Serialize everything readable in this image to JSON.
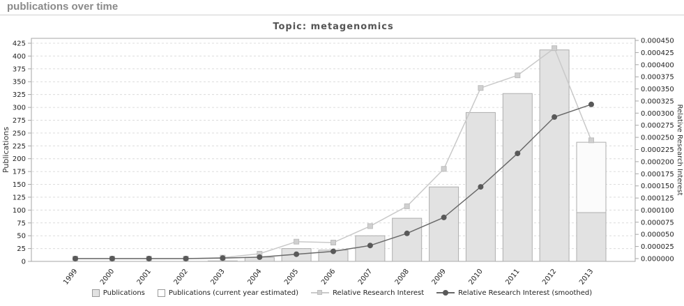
{
  "page": {
    "title": "publications over time"
  },
  "chart": {
    "title": "Topic: metagenomics",
    "left_axis": {
      "label": "Publications",
      "min": 0,
      "max": 425,
      "step": 25
    },
    "right_axis": {
      "label": "Relative Research Interest",
      "min": 0,
      "max": 0.00045,
      "step": 2.5e-05,
      "decimals": 6
    },
    "legend": [
      {
        "label": "Publications",
        "swatch": "bar"
      },
      {
        "label": "Publications (current year estimated)",
        "swatch": "bar-estimated"
      },
      {
        "label": "Relative Research Interest",
        "swatch": "line-square"
      },
      {
        "label": "Relative Research Interest (smoothed)",
        "swatch": "line-dot"
      }
    ]
  },
  "chart_data": {
    "type": "bar",
    "categories": [
      "1999",
      "2000",
      "2001",
      "2002",
      "2003",
      "2004",
      "2005",
      "2006",
      "2007",
      "2008",
      "2009",
      "2010",
      "2011",
      "2012",
      "2013"
    ],
    "series": [
      {
        "name": "Publications",
        "type": "bar",
        "axis": "left",
        "values": [
          0,
          0,
          0,
          0,
          1,
          8,
          25,
          22,
          50,
          84,
          145,
          290,
          327,
          412,
          95
        ]
      },
      {
        "name": "Publications (current year estimated)",
        "type": "bar-estimated",
        "axis": "left",
        "values": [
          null,
          null,
          null,
          null,
          null,
          null,
          null,
          null,
          null,
          null,
          null,
          null,
          null,
          null,
          232
        ]
      },
      {
        "name": "Relative Research Interest",
        "type": "line-square",
        "axis": "right",
        "values": [
          0,
          0,
          0,
          0,
          2e-06,
          1e-05,
          3.5e-05,
          3.3e-05,
          6.7e-05,
          0.000108,
          0.000185,
          0.000352,
          0.000378,
          0.000434,
          0.000244
        ]
      },
      {
        "name": "Relative Research Interest (smoothed)",
        "type": "line-dot",
        "axis": "right",
        "values": [
          0,
          0,
          0,
          0,
          1e-06,
          3e-06,
          9e-06,
          1.5e-05,
          2.7e-05,
          5.2e-05,
          8.5e-05,
          0.000148,
          0.000217,
          0.000292,
          0.000318
        ]
      }
    ],
    "title": "Topic: metagenomics",
    "xlabel": "",
    "ylabel_left": "Publications",
    "ylabel_right": "Relative Research Interest",
    "ylim_left": [
      0,
      425
    ],
    "ylim_right": [
      0,
      0.00045
    ],
    "grid": "horizontal-dashed",
    "legend_position": "bottom"
  },
  "colors": {
    "bar_fill": "#e2e2e2",
    "bar_stroke": "#aeaeae",
    "bar_estimated_fill": "#fbfbfb",
    "line_raw": "#c9c9c9",
    "marker_raw_fill": "#d0d0d0",
    "marker_raw_stroke": "#bdbdbd",
    "line_smoothed": "#696969",
    "marker_smoothed_fill": "#595959",
    "grid": "#dcdcdc",
    "plot_border": "#a6a6a6",
    "tick_text": "#222222",
    "title_text": "#555555",
    "header_text": "#8a8a8a"
  }
}
